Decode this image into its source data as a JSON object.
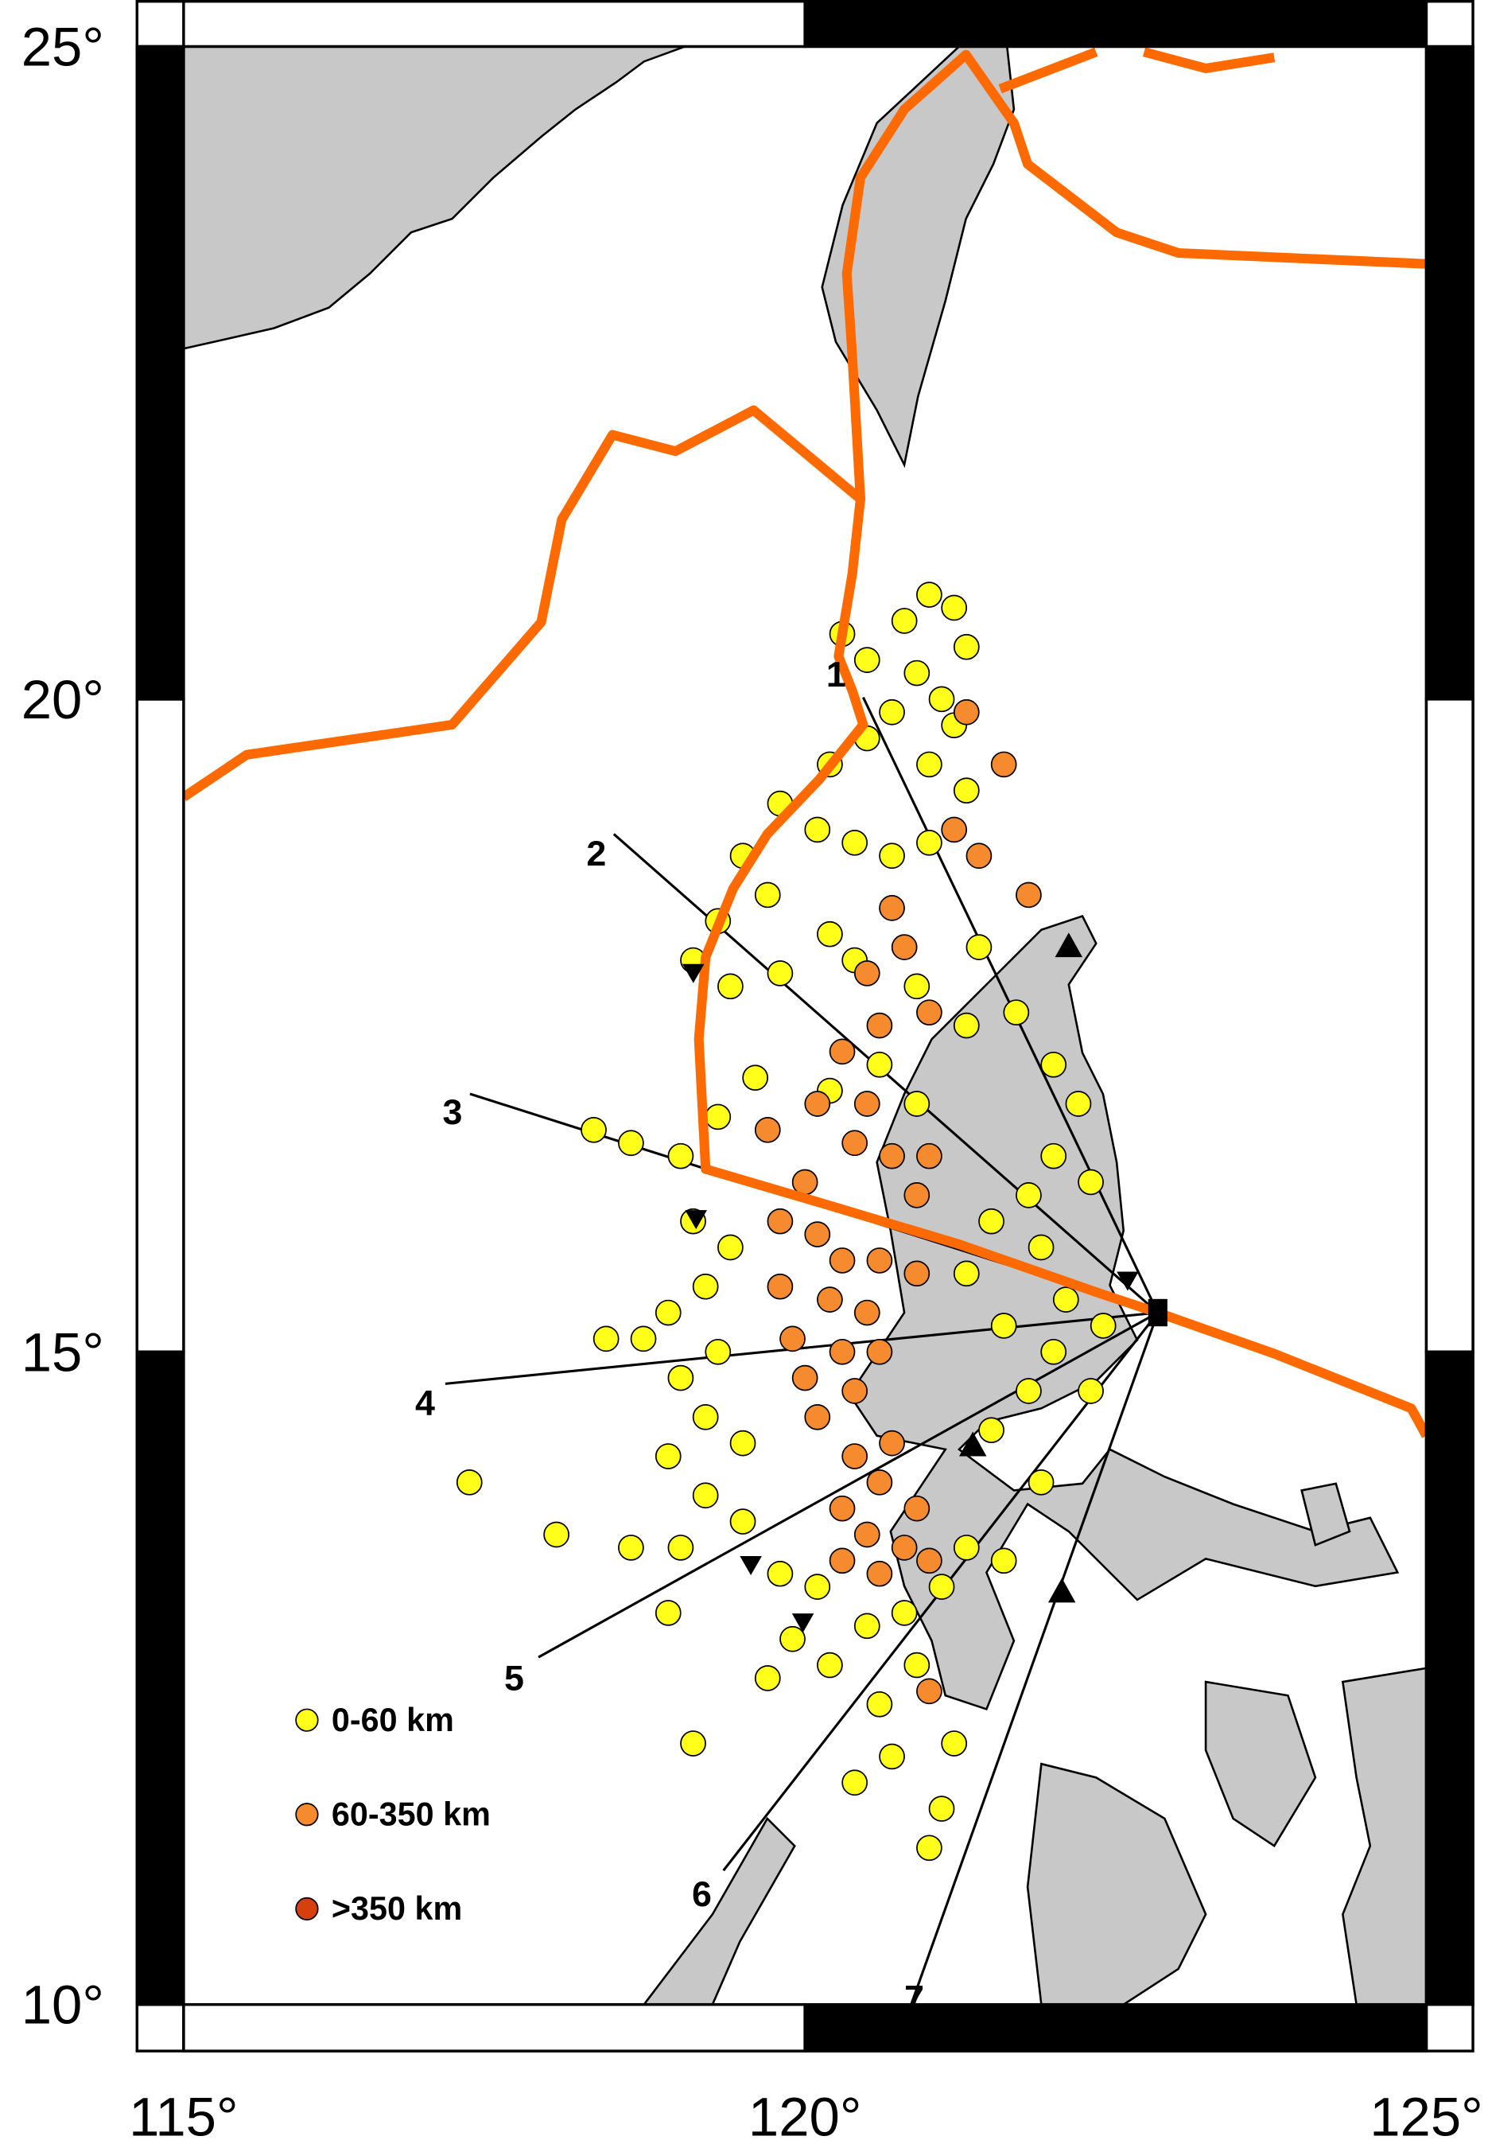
{
  "map": {
    "lat_ticks": [
      {
        "value": 25,
        "label": "25°"
      },
      {
        "value": 20,
        "label": "20°"
      },
      {
        "value": 15,
        "label": "15°"
      },
      {
        "value": 10,
        "label": "10°"
      }
    ],
    "lon_ticks": [
      {
        "value": 115,
        "label": "115°"
      },
      {
        "value": 120,
        "label": "120°"
      },
      {
        "value": 125,
        "label": "125°"
      }
    ],
    "legend": [
      {
        "label": "0-60 km",
        "color": "#ffff1a"
      },
      {
        "label": "60-350 km",
        "color": "#f58a2e"
      },
      {
        "label": ">350 km",
        "color": "#d6400f"
      }
    ],
    "profiles": [
      "1",
      "2",
      "3",
      "4",
      "5",
      "6",
      "7"
    ],
    "earthquakes": {
      "shallow": [
        [
          120.3,
          20.5
        ],
        [
          120.5,
          20.3
        ],
        [
          120.8,
          20.6
        ],
        [
          121.0,
          20.8
        ],
        [
          121.2,
          20.7
        ],
        [
          121.3,
          20.4
        ],
        [
          120.9,
          20.2
        ],
        [
          121.1,
          20.0
        ],
        [
          121.2,
          19.8
        ],
        [
          120.7,
          19.9
        ],
        [
          120.5,
          19.7
        ],
        [
          121.0,
          19.5
        ],
        [
          121.3,
          19.3
        ],
        [
          120.2,
          19.5
        ],
        [
          119.8,
          19.2
        ],
        [
          120.1,
          19.0
        ],
        [
          120.4,
          18.9
        ],
        [
          120.7,
          18.8
        ],
        [
          121.0,
          18.9
        ],
        [
          119.5,
          18.8
        ],
        [
          119.7,
          18.5
        ],
        [
          119.3,
          18.3
        ],
        [
          119.1,
          18.0
        ],
        [
          119.4,
          17.8
        ],
        [
          119.8,
          17.9
        ],
        [
          120.2,
          18.2
        ],
        [
          120.4,
          18.0
        ],
        [
          120.9,
          17.8
        ],
        [
          121.4,
          18.1
        ],
        [
          121.3,
          17.5
        ],
        [
          121.7,
          17.6
        ],
        [
          122.0,
          17.2
        ],
        [
          122.2,
          16.9
        ],
        [
          122.0,
          16.5
        ],
        [
          121.8,
          16.2
        ],
        [
          121.5,
          16.0
        ],
        [
          122.3,
          16.3
        ],
        [
          121.9,
          15.8
        ],
        [
          122.1,
          15.4
        ],
        [
          122.4,
          15.2
        ],
        [
          122.0,
          15.0
        ],
        [
          121.6,
          15.2
        ],
        [
          121.3,
          15.6
        ],
        [
          120.9,
          16.9
        ],
        [
          120.6,
          17.2
        ],
        [
          120.2,
          17.0
        ],
        [
          119.6,
          17.1
        ],
        [
          119.3,
          16.8
        ],
        [
          119.0,
          16.5
        ],
        [
          118.6,
          16.6
        ],
        [
          119.1,
          16.0
        ],
        [
          119.4,
          15.8
        ],
        [
          119.2,
          15.5
        ],
        [
          118.9,
          15.3
        ],
        [
          118.7,
          15.1
        ],
        [
          118.4,
          15.1
        ],
        [
          119.3,
          15.0
        ],
        [
          119.0,
          14.8
        ],
        [
          119.2,
          14.5
        ],
        [
          119.5,
          14.3
        ],
        [
          118.9,
          14.2
        ],
        [
          119.2,
          13.9
        ],
        [
          119.5,
          13.7
        ],
        [
          119.0,
          13.5
        ],
        [
          118.6,
          13.5
        ],
        [
          119.8,
          13.3
        ],
        [
          120.1,
          13.2
        ],
        [
          119.9,
          12.8
        ],
        [
          120.2,
          12.6
        ],
        [
          120.5,
          12.9
        ],
        [
          120.8,
          13.0
        ],
        [
          121.1,
          13.2
        ],
        [
          121.3,
          13.5
        ],
        [
          120.9,
          12.6
        ],
        [
          120.6,
          12.3
        ],
        [
          120.7,
          11.9
        ],
        [
          120.4,
          11.7
        ],
        [
          121.2,
          12.0
        ],
        [
          121.1,
          11.5
        ],
        [
          121.0,
          11.2
        ],
        [
          119.7,
          12.5
        ],
        [
          118.9,
          13.0
        ],
        [
          119.1,
          12.0
        ],
        [
          117.3,
          14.0
        ],
        [
          118.0,
          13.6
        ],
        [
          118.3,
          16.7
        ],
        [
          121.8,
          14.7
        ],
        [
          121.5,
          14.4
        ],
        [
          121.9,
          14.0
        ],
        [
          122.3,
          14.7
        ],
        [
          121.6,
          13.4
        ]
      ],
      "intermediate": [
        [
          121.2,
          19.0
        ],
        [
          121.3,
          19.9
        ],
        [
          121.6,
          19.5
        ],
        [
          121.4,
          18.8
        ],
        [
          121.8,
          18.5
        ],
        [
          120.7,
          18.4
        ],
        [
          120.8,
          18.1
        ],
        [
          120.5,
          17.9
        ],
        [
          120.6,
          17.5
        ],
        [
          121.0,
          17.6
        ],
        [
          120.3,
          17.3
        ],
        [
          120.1,
          16.9
        ],
        [
          120.5,
          16.9
        ],
        [
          120.4,
          16.6
        ],
        [
          120.7,
          16.5
        ],
        [
          121.0,
          16.5
        ],
        [
          120.9,
          16.2
        ],
        [
          120.0,
          16.3
        ],
        [
          119.7,
          16.7
        ],
        [
          119.8,
          16.0
        ],
        [
          120.1,
          15.9
        ],
        [
          120.3,
          15.7
        ],
        [
          120.6,
          15.7
        ],
        [
          120.9,
          15.6
        ],
        [
          119.8,
          15.5
        ],
        [
          120.2,
          15.4
        ],
        [
          120.5,
          15.3
        ],
        [
          119.9,
          15.1
        ],
        [
          120.3,
          15.0
        ],
        [
          120.6,
          15.0
        ],
        [
          120.0,
          14.8
        ],
        [
          120.4,
          14.7
        ],
        [
          120.1,
          14.5
        ],
        [
          120.7,
          14.3
        ],
        [
          120.4,
          14.2
        ],
        [
          120.6,
          14.0
        ],
        [
          120.9,
          13.8
        ],
        [
          120.3,
          13.8
        ],
        [
          120.5,
          13.6
        ],
        [
          120.8,
          13.5
        ],
        [
          120.6,
          13.3
        ],
        [
          121.0,
          13.4
        ],
        [
          120.3,
          13.4
        ],
        [
          121.0,
          12.4
        ]
      ]
    }
  }
}
